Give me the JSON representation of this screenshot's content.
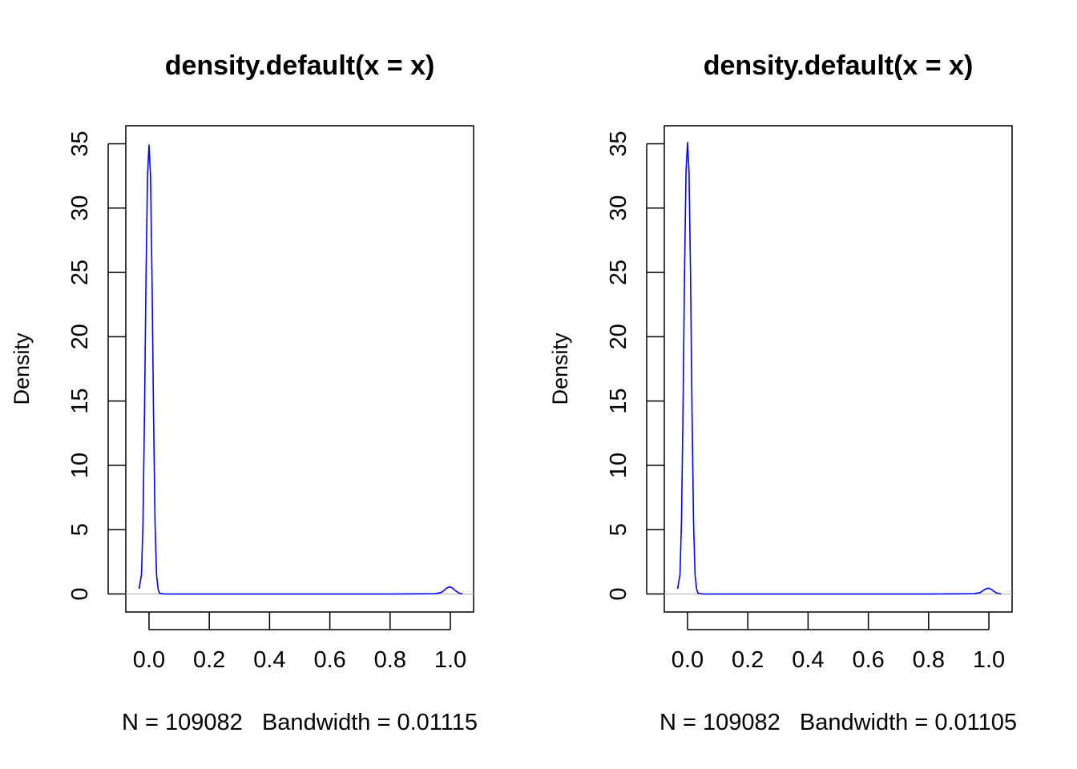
{
  "chart_data": [
    {
      "type": "line",
      "title": "density.default(x = x)",
      "ylabel": "Density",
      "xlabel": "N = 109082   Bandwidth = 0.01115",
      "xlim": [
        -0.077,
        1.077
      ],
      "ylim": [
        -1.4,
        36.4
      ],
      "x_ticks": [
        0.0,
        0.2,
        0.4,
        0.6,
        0.8,
        1.0
      ],
      "x_tick_labels": [
        "0.0",
        "0.2",
        "0.4",
        "0.6",
        "0.8",
        "1.0"
      ],
      "y_ticks": [
        0,
        5,
        10,
        15,
        20,
        25,
        30,
        35
      ],
      "y_tick_labels": [
        "0",
        "5",
        "10",
        "15",
        "20",
        "25",
        "30",
        "35"
      ],
      "zero_line": true,
      "series": [
        {
          "color": "#0000ff",
          "x": [
            -0.033,
            -0.025,
            -0.02,
            -0.015,
            -0.01,
            -0.005,
            0.0,
            0.005,
            0.01,
            0.015,
            0.02,
            0.025,
            0.03,
            0.035,
            0.05,
            0.2,
            0.5,
            0.8,
            0.95,
            0.97,
            0.98,
            0.99,
            1.0,
            1.01,
            1.02,
            1.03,
            1.04
          ],
          "y": [
            0.4,
            1.5,
            5.5,
            14.0,
            24.5,
            32.5,
            34.9,
            32.5,
            24.5,
            14.0,
            5.5,
            1.5,
            0.4,
            0.05,
            0.0,
            0.0,
            0.0,
            0.0,
            0.02,
            0.12,
            0.3,
            0.5,
            0.55,
            0.4,
            0.2,
            0.06,
            0.0
          ]
        }
      ]
    },
    {
      "type": "line",
      "title": "density.default(x = x)",
      "ylabel": "Density",
      "xlabel": "N = 109082   Bandwidth = 0.01105",
      "xlim": [
        -0.077,
        1.077
      ],
      "ylim": [
        -1.4,
        36.4
      ],
      "x_ticks": [
        0.0,
        0.2,
        0.4,
        0.6,
        0.8,
        1.0
      ],
      "x_tick_labels": [
        "0.0",
        "0.2",
        "0.4",
        "0.6",
        "0.8",
        "1.0"
      ],
      "y_ticks": [
        0,
        5,
        10,
        15,
        20,
        25,
        30,
        35
      ],
      "y_tick_labels": [
        "0",
        "5",
        "10",
        "15",
        "20",
        "25",
        "30",
        "35"
      ],
      "zero_line": true,
      "series": [
        {
          "color": "#0000ff",
          "x": [
            -0.033,
            -0.025,
            -0.02,
            -0.015,
            -0.01,
            -0.005,
            0.0,
            0.005,
            0.01,
            0.015,
            0.02,
            0.025,
            0.03,
            0.035,
            0.05,
            0.2,
            0.5,
            0.8,
            0.95,
            0.97,
            0.98,
            0.99,
            1.0,
            1.01,
            1.02,
            1.03,
            1.04
          ],
          "y": [
            0.4,
            1.5,
            5.6,
            14.2,
            24.8,
            32.8,
            35.1,
            32.8,
            24.8,
            14.2,
            5.6,
            1.5,
            0.4,
            0.05,
            0.0,
            0.0,
            0.0,
            0.0,
            0.02,
            0.1,
            0.25,
            0.4,
            0.45,
            0.33,
            0.15,
            0.05,
            0.0
          ]
        }
      ]
    }
  ]
}
